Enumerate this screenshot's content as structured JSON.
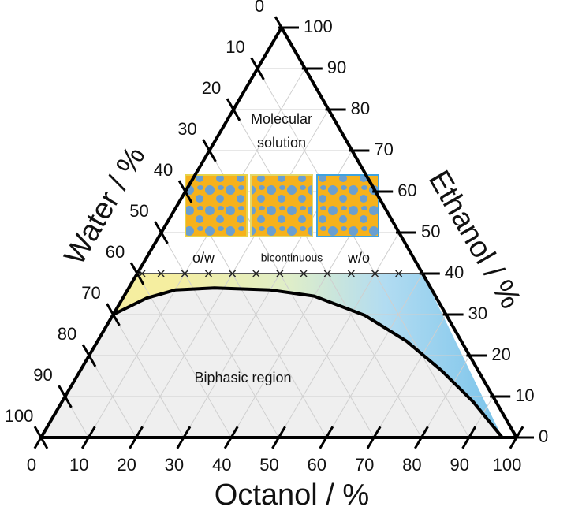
{
  "chart_data": {
    "type": "ternary",
    "grid": true,
    "axes": {
      "bottom": {
        "title": "Octanol / %",
        "ticks": [
          0,
          10,
          20,
          30,
          40,
          50,
          60,
          70,
          80,
          90,
          100
        ]
      },
      "right": {
        "title": "Ethanol / %",
        "ticks": [
          0,
          10,
          20,
          30,
          40,
          50,
          60,
          70,
          80,
          90,
          100
        ]
      },
      "left": {
        "title": "Water / %",
        "ticks": [
          0,
          10,
          20,
          30,
          40,
          50,
          60,
          70,
          80,
          90,
          100
        ]
      }
    },
    "binodal": {
      "color": "#000000",
      "octanol": [
        0,
        5,
        10,
        18,
        30,
        40,
        53,
        65,
        76,
        86.5,
        97
      ],
      "ethanol": [
        30,
        34,
        36,
        36.5,
        36,
        34.5,
        29.8,
        23.5,
        16.3,
        8.7,
        0
      ]
    },
    "tie_line": {
      "ethanol": 40,
      "octanol": [
        0,
        60
      ]
    },
    "samples": {
      "octanol": [
        1,
        5,
        10,
        15,
        20,
        25,
        30,
        35,
        40,
        45,
        50,
        55
      ],
      "ethanol": [
        40,
        40,
        40,
        40,
        40,
        40,
        40,
        40,
        40,
        40,
        40,
        40
      ]
    },
    "region_labels": [
      "Molecular",
      "solution",
      "o/w",
      "bicontinuous",
      "w/o",
      "Biphasic region"
    ]
  }
}
